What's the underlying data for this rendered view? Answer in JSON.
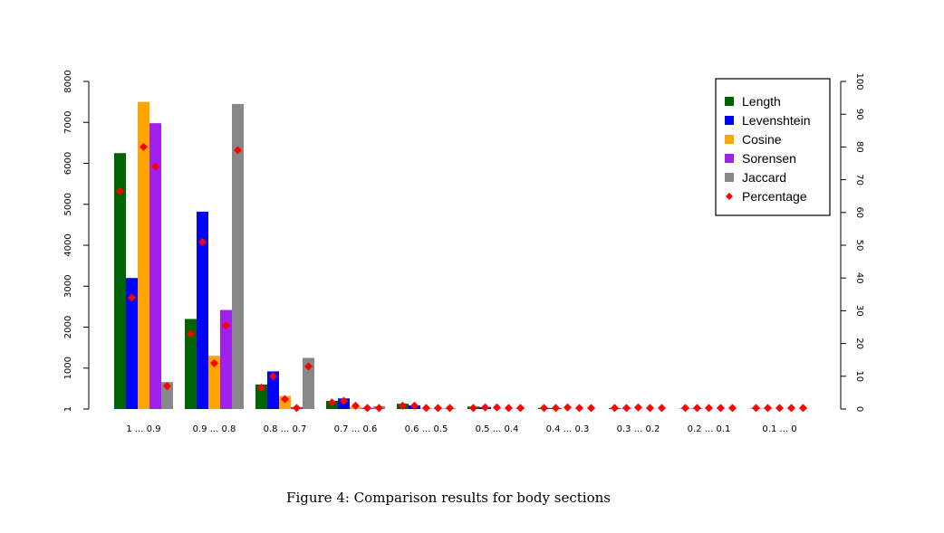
{
  "chart_data": {
    "type": "bar",
    "categories": [
      "1 ... 0.9",
      "0.9 ... 0.8",
      "0.8 ... 0.7",
      "0.7 ... 0.6",
      "0.6 ... 0.5",
      "0.5 ... 0.4",
      "0.4 ... 0.3",
      "0.3 ... 0.2",
      "0.2 ... 0.1",
      "0.1 ... 0"
    ],
    "series": [
      {
        "name": "Length",
        "color": "#006400",
        "values": [
          6250,
          2200,
          600,
          200,
          130,
          60,
          30,
          20,
          10,
          10
        ]
      },
      {
        "name": "Levenshtein",
        "color": "#0000ff",
        "values": [
          3200,
          4820,
          920,
          260,
          90,
          50,
          20,
          10,
          10,
          5
        ]
      },
      {
        "name": "Cosine",
        "color": "#ffa500",
        "values": [
          7500,
          1300,
          320,
          60,
          20,
          10,
          5,
          5,
          5,
          5
        ]
      },
      {
        "name": "Sorensen",
        "color": "#a020f0",
        "values": [
          6980,
          2420,
          50,
          30,
          10,
          5,
          5,
          5,
          5,
          5
        ]
      },
      {
        "name": "Jaccard",
        "color": "#888888",
        "values": [
          660,
          7450,
          1250,
          70,
          20,
          10,
          5,
          5,
          5,
          5
        ]
      }
    ],
    "percentage": {
      "name": "Percentage",
      "color": "#ff0000",
      "values": [
        [
          66.5,
          34,
          80,
          74,
          7
        ],
        [
          23,
          51,
          14,
          25.5,
          79
        ],
        [
          6.5,
          10,
          3,
          0.3,
          13
        ],
        [
          2,
          2.5,
          1,
          0.3,
          0.3
        ],
        [
          1,
          1,
          0.3,
          0.3,
          0.3
        ],
        [
          0.3,
          0.5,
          0.5,
          0.3,
          0.3
        ],
        [
          0.3,
          0.3,
          0.5,
          0.3,
          0.3
        ],
        [
          0.3,
          0.3,
          0.5,
          0.3,
          0.3
        ],
        [
          0.3,
          0.3,
          0.3,
          0.3,
          0.3
        ],
        [
          0.3,
          0.3,
          0.3,
          0.3,
          0.3
        ]
      ]
    },
    "ylim_left": [
      1,
      8000
    ],
    "yticks_left": [
      "1",
      "1000",
      "2000",
      "3000",
      "4000",
      "5000",
      "6000",
      "7000",
      "8000"
    ],
    "ylim_right": [
      0,
      100
    ],
    "yticks_right": [
      "0",
      "10",
      "20",
      "30",
      "40",
      "50",
      "60",
      "70",
      "80",
      "90",
      "100"
    ],
    "legend": [
      "Length",
      "Levenshtein",
      "Cosine",
      "Sorensen",
      "Jaccard",
      "Percentage"
    ],
    "legend_position": "top-right",
    "grid": false,
    "title": "",
    "xlabel": "",
    "ylabel": ""
  },
  "caption": "Figure 4: Comparison results for body sections"
}
